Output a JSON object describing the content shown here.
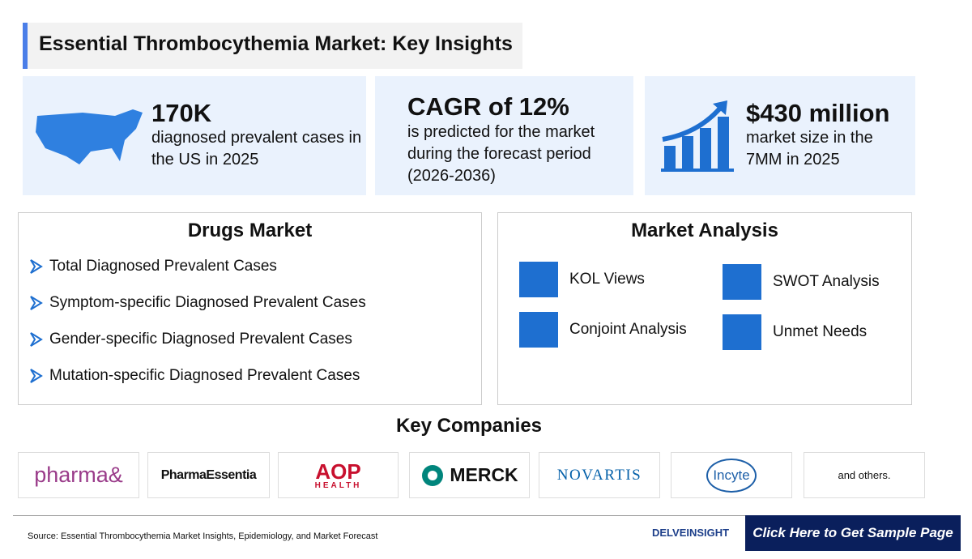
{
  "header": {
    "title": "Essential Thrombocythemia Market: Key Insights"
  },
  "stats": [
    {
      "value": "170K",
      "text": "diagnosed prevalent cases in the US in 2025"
    },
    {
      "value": "CAGR of 12%",
      "text": "is predicted for the market during the forecast period (2026-2036)"
    },
    {
      "value": "$430 million",
      "text": "market size in the 7MM in 2025"
    }
  ],
  "drugs_market": {
    "title": "Drugs Market",
    "items": [
      "Total Diagnosed Prevalent Cases",
      "Symptom-specific Diagnosed Prevalent Cases",
      "Gender-specific Diagnosed Prevalent Cases",
      "Mutation-specific Diagnosed Prevalent Cases"
    ]
  },
  "market_analysis": {
    "title": "Market Analysis",
    "items": [
      "KOL Views",
      "SWOT Analysis",
      "Conjoint Analysis",
      "Unmet Needs"
    ]
  },
  "key_companies": {
    "title": "Key Companies",
    "companies": [
      "pharma&",
      "PharmaEssentia",
      "AOP",
      "HEALTH",
      "MERCK",
      "NOVARTIS",
      "Incyte",
      "and others."
    ]
  },
  "footer": {
    "source": "Source: Essential Thrombocythemia Market Insights, Epidemiology, and Market Forecast",
    "brand": "DELVEINSIGHT",
    "button": "Click Here to Get Sample Page"
  }
}
